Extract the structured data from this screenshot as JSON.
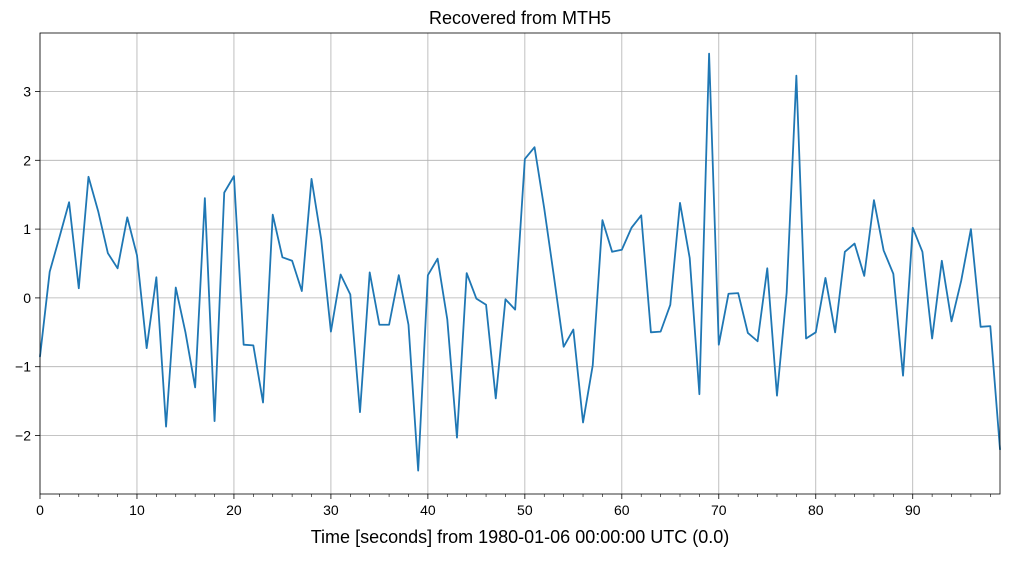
{
  "chart_data": {
    "type": "line",
    "title": "Recovered from MTH5",
    "xlabel": "Time [seconds] from 1980-01-06 00:00:00 UTC (0.0)",
    "ylabel": "",
    "xlim": [
      0,
      99
    ],
    "ylim": [
      -2.85,
      3.85
    ],
    "x_ticks": [
      0,
      10,
      20,
      30,
      40,
      50,
      60,
      70,
      80,
      90
    ],
    "x_tick_labels": [
      "0",
      "10",
      "20",
      "30",
      "40",
      "50",
      "60",
      "70",
      "80",
      "90"
    ],
    "y_ticks": [
      -2,
      -1,
      0,
      1,
      2,
      3
    ],
    "y_tick_labels": [
      "−2",
      "−1",
      "0",
      "1",
      "2",
      "3"
    ],
    "grid": true,
    "series": [
      {
        "name": "Recovered from MTH5",
        "color": "#1f77b4",
        "x": [
          0,
          1,
          2,
          3,
          4,
          5,
          6,
          7,
          8,
          9,
          10,
          11,
          12,
          13,
          14,
          15,
          16,
          17,
          18,
          19,
          20,
          21,
          22,
          23,
          24,
          25,
          26,
          27,
          28,
          29,
          30,
          31,
          32,
          33,
          34,
          35,
          36,
          37,
          38,
          39,
          40,
          41,
          42,
          43,
          44,
          45,
          46,
          47,
          48,
          49,
          50,
          51,
          52,
          53,
          54,
          55,
          56,
          57,
          58,
          59,
          60,
          61,
          62,
          63,
          64,
          65,
          66,
          67,
          68,
          69,
          70,
          71,
          72,
          73,
          74,
          75,
          76,
          77,
          78,
          79,
          80,
          81,
          82,
          83,
          84,
          85,
          86,
          87,
          88,
          89,
          90,
          91,
          92,
          93,
          94,
          95,
          96,
          97,
          98,
          99
        ],
        "values": [
          -0.85,
          0.38,
          0.88,
          1.39,
          0.14,
          1.76,
          1.26,
          0.65,
          0.43,
          1.17,
          0.62,
          -0.73,
          0.3,
          -1.87,
          0.15,
          -0.5,
          -1.3,
          1.45,
          -1.79,
          1.53,
          1.77,
          -0.68,
          -0.69,
          -1.52,
          1.21,
          0.59,
          0.54,
          0.1,
          1.73,
          0.85,
          -0.49,
          0.34,
          0.05,
          -1.66,
          0.37,
          -0.39,
          -0.39,
          0.33,
          -0.39,
          -2.51,
          0.33,
          0.57,
          -0.31,
          -2.03,
          0.36,
          -0.01,
          -0.1,
          -1.46,
          -0.02,
          -0.17,
          2.02,
          2.19,
          1.3,
          0.31,
          -0.71,
          -0.46,
          -1.81,
          -0.98,
          1.13,
          0.67,
          0.7,
          1.02,
          1.2,
          -0.5,
          -0.49,
          -0.1,
          1.38,
          0.58,
          -1.4,
          3.55,
          -0.68,
          0.06,
          0.07,
          -0.51,
          -0.63,
          0.43,
          -1.42,
          0.08,
          3.23,
          -0.59,
          -0.5,
          0.29,
          -0.5,
          0.67,
          0.79,
          0.32,
          1.42,
          0.69,
          0.35,
          -1.13,
          1.02,
          0.67,
          -0.59,
          0.54,
          -0.34,
          0.25,
          1.0,
          -0.42,
          -0.41,
          -2.2
        ]
      }
    ]
  }
}
